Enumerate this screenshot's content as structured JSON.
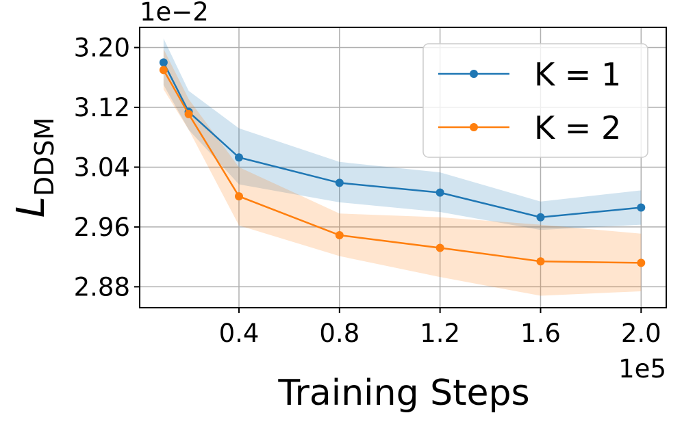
{
  "chart_data": {
    "type": "line",
    "xlabel": "Training Steps",
    "ylabel_main": "L",
    "ylabel_sub": "DDSM",
    "x_offset_label": "1e5",
    "y_offset_label": "1e−2",
    "xlim": [
      0.005,
      2.1
    ],
    "ylim": [
      2.852,
      3.227
    ],
    "xticks": [
      0.4,
      0.8,
      1.2,
      1.6,
      2.0
    ],
    "xtick_labels": [
      "0.4",
      "0.8",
      "1.2",
      "1.6",
      "2.0"
    ],
    "yticks": [
      2.88,
      2.96,
      3.04,
      3.12,
      3.2
    ],
    "ytick_labels": [
      "2.88",
      "2.96",
      "3.04",
      "3.12",
      "3.20"
    ],
    "grid": true,
    "legend_placement": "upper-right",
    "x": [
      0.1,
      0.2,
      0.4,
      0.8,
      1.2,
      1.6,
      2.0
    ],
    "series": [
      {
        "name": "K = 1",
        "color": "#1f77b4",
        "band_color": "#1f77b4",
        "values": [
          3.18,
          3.114,
          3.053,
          3.019,
          3.006,
          2.973,
          2.986
        ],
        "upper": [
          3.212,
          3.142,
          3.092,
          3.047,
          3.033,
          2.994,
          3.009
        ],
        "lower": [
          3.15,
          3.09,
          3.017,
          2.993,
          2.98,
          2.956,
          2.963
        ]
      },
      {
        "name": "K = 2",
        "color": "#ff7f0e",
        "band_color": "#ff7f0e",
        "values": [
          3.17,
          3.111,
          3.001,
          2.949,
          2.932,
          2.914,
          2.912
        ],
        "upper": [
          3.198,
          3.131,
          3.04,
          2.978,
          2.973,
          2.963,
          2.951
        ],
        "lower": [
          3.144,
          3.09,
          2.962,
          2.921,
          2.893,
          2.868,
          2.874
        ]
      }
    ]
  }
}
